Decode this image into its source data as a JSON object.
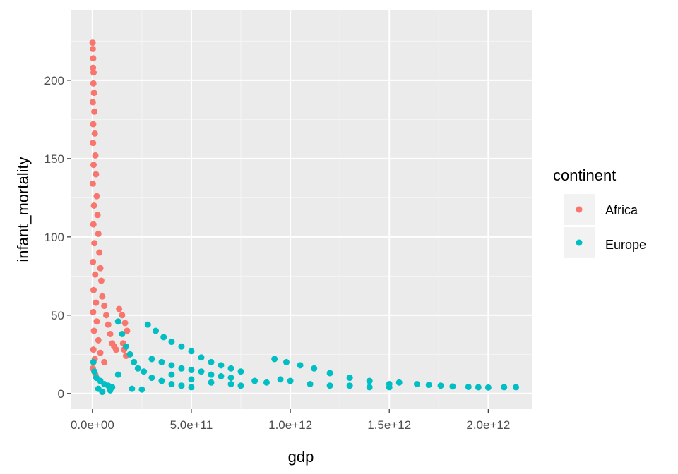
{
  "chart_data": {
    "type": "scatter",
    "title": "",
    "xlabel": "gdp",
    "ylabel": "infant_mortality",
    "xlim": [
      -110000000000.0,
      2220000000000.0
    ],
    "ylim": [
      -10,
      245
    ],
    "x_ticks": [
      0,
      500000000000.0,
      1000000000000.0,
      1500000000000.0,
      2000000000000.0
    ],
    "x_tick_labels": [
      "0.0e+00",
      "5.0e+11",
      "1.0e+12",
      "1.5e+12",
      "2.0e+12"
    ],
    "y_ticks": [
      0,
      50,
      100,
      150,
      200
    ],
    "y_tick_labels": [
      "0",
      "50",
      "100",
      "150",
      "200"
    ],
    "grid": true,
    "background": "#ebebeb",
    "legend": {
      "title": "continent",
      "position": "right"
    },
    "series": [
      {
        "name": "Africa",
        "color": "#F8766D",
        "points": [
          [
            1000000000.0,
            224
          ],
          [
            2000000000.0,
            220
          ],
          [
            4000000000.0,
            214
          ],
          [
            3000000000.0,
            208
          ],
          [
            6000000000.0,
            205
          ],
          [
            5000000000.0,
            198
          ],
          [
            8000000000.0,
            192
          ],
          [
            2000000000.0,
            186
          ],
          [
            10000000000.0,
            180
          ],
          [
            4000000000.0,
            172
          ],
          [
            12000000000.0,
            166
          ],
          [
            3000000000.0,
            160
          ],
          [
            15000000000.0,
            152
          ],
          [
            6000000000.0,
            146
          ],
          [
            18000000000.0,
            140
          ],
          [
            2000000000.0,
            134
          ],
          [
            22000000000.0,
            126
          ],
          [
            8000000000.0,
            120
          ],
          [
            26000000000.0,
            114
          ],
          [
            5000000000.0,
            108
          ],
          [
            30000000000.0,
            102
          ],
          [
            10000000000.0,
            96
          ],
          [
            35000000000.0,
            90
          ],
          [
            3000000000.0,
            84
          ],
          [
            40000000000.0,
            80
          ],
          [
            14000000000.0,
            76
          ],
          [
            45000000000.0,
            72
          ],
          [
            6000000000.0,
            66
          ],
          [
            50000000000.0,
            62
          ],
          [
            18000000000.0,
            58
          ],
          [
            60000000000.0,
            56
          ],
          [
            4000000000.0,
            52
          ],
          [
            70000000000.0,
            50
          ],
          [
            22000000000.0,
            46
          ],
          [
            80000000000.0,
            44
          ],
          [
            8000000000.0,
            40
          ],
          [
            90000000000.0,
            38
          ],
          [
            30000000000.0,
            34
          ],
          [
            100000000000.0,
            32
          ],
          [
            5000000000.0,
            28
          ],
          [
            110000000000.0,
            30
          ],
          [
            40000000000.0,
            26
          ],
          [
            120000000000.0,
            28
          ],
          [
            12000000000.0,
            22
          ],
          [
            135000000000.0,
            54
          ],
          [
            150000000000.0,
            50
          ],
          [
            165000000000.0,
            45
          ],
          [
            175000000000.0,
            40
          ],
          [
            155000000000.0,
            32
          ],
          [
            160000000000.0,
            28
          ],
          [
            170000000000.0,
            24
          ],
          [
            60000000000.0,
            20
          ],
          [
            2000000000.0,
            16
          ],
          [
            15000000000.0,
            12
          ]
        ]
      },
      {
        "name": "Europe",
        "color": "#00BFC4",
        "points": [
          [
            5000000000.0,
            20
          ],
          [
            10000000000.0,
            14
          ],
          [
            20000000000.0,
            10
          ],
          [
            40000000000.0,
            8
          ],
          [
            60000000000.0,
            6
          ],
          [
            80000000000.0,
            5
          ],
          [
            100000000000.0,
            4
          ],
          [
            130000000000.0,
            12
          ],
          [
            130000000000.0,
            46
          ],
          [
            150000000000.0,
            38
          ],
          [
            170000000000.0,
            30
          ],
          [
            190000000000.0,
            25
          ],
          [
            210000000000.0,
            20
          ],
          [
            230000000000.0,
            16
          ],
          [
            260000000000.0,
            14
          ],
          [
            300000000000.0,
            10
          ],
          [
            350000000000.0,
            8
          ],
          [
            400000000000.0,
            6
          ],
          [
            450000000000.0,
            5
          ],
          [
            500000000000.0,
            4
          ],
          [
            280000000000.0,
            44
          ],
          [
            320000000000.0,
            40
          ],
          [
            360000000000.0,
            36
          ],
          [
            400000000000.0,
            33
          ],
          [
            450000000000.0,
            30
          ],
          [
            500000000000.0,
            27
          ],
          [
            550000000000.0,
            23
          ],
          [
            600000000000.0,
            20
          ],
          [
            650000000000.0,
            18
          ],
          [
            700000000000.0,
            16
          ],
          [
            750000000000.0,
            14
          ],
          [
            300000000000.0,
            22
          ],
          [
            350000000000.0,
            20
          ],
          [
            400000000000.0,
            18
          ],
          [
            450000000000.0,
            16
          ],
          [
            500000000000.0,
            15
          ],
          [
            550000000000.0,
            14
          ],
          [
            600000000000.0,
            12
          ],
          [
            650000000000.0,
            11
          ],
          [
            700000000000.0,
            10
          ],
          [
            400000000000.0,
            12
          ],
          [
            500000000000.0,
            9
          ],
          [
            600000000000.0,
            7
          ],
          [
            700000000000.0,
            6
          ],
          [
            750000000000.0,
            5
          ],
          [
            920000000000.0,
            22
          ],
          [
            980000000000.0,
            20
          ],
          [
            1050000000000.0,
            18
          ],
          [
            1120000000000.0,
            16
          ],
          [
            1200000000000.0,
            13
          ],
          [
            1300000000000.0,
            10
          ],
          [
            1400000000000.0,
            8
          ],
          [
            1500000000000.0,
            6
          ],
          [
            1550000000000.0,
            7
          ],
          [
            950000000000.0,
            9
          ],
          [
            1000000000000.0,
            8
          ],
          [
            1100000000000.0,
            6
          ],
          [
            1200000000000.0,
            5
          ],
          [
            1300000000000.0,
            5
          ],
          [
            1400000000000.0,
            4
          ],
          [
            1500000000000.0,
            4
          ],
          [
            1640000000000.0,
            6
          ],
          [
            1700000000000.0,
            5.5
          ],
          [
            1760000000000.0,
            5
          ],
          [
            1820000000000.0,
            4.5
          ],
          [
            1900000000000.0,
            4.2
          ],
          [
            1950000000000.0,
            4
          ],
          [
            2000000000000.0,
            3.8
          ],
          [
            2080000000000.0,
            4
          ],
          [
            2140000000000.0,
            4
          ],
          [
            820000000000.0,
            8
          ],
          [
            880000000000.0,
            7
          ],
          [
            90000000000.0,
            2
          ],
          [
            50000000000.0,
            1
          ],
          [
            30000000000.0,
            3
          ],
          [
            200000000000.0,
            3
          ],
          [
            250000000000.0,
            2.5
          ]
        ]
      }
    ]
  }
}
